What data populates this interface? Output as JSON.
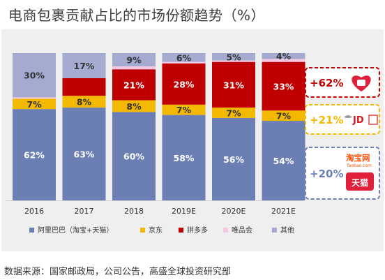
{
  "title": "电商包裹贡献占比的市场份额趋势（%）",
  "source": "数据来源：国家邮政局，公司公告，高盛全球投资研究部",
  "chart_data": {
    "type": "bar",
    "stacked": true,
    "categories": [
      "2016",
      "2017",
      "2018",
      "2019E",
      "2020E",
      "2021E"
    ],
    "ylim": [
      0,
      100
    ],
    "grid": false,
    "legend_position": "bottom",
    "series": [
      {
        "name": "阿里巴巴（淘宝+天猫）",
        "color": "#6b7fb5",
        "values": [
          62,
          63,
          60,
          58,
          56,
          54
        ]
      },
      {
        "name": "京东",
        "color": "#f3b800",
        "values": [
          7,
          8,
          8,
          7,
          7,
          7
        ]
      },
      {
        "name": "拼多多",
        "color": "#c00000",
        "values": [
          0,
          12,
          21,
          28,
          31,
          33
        ]
      },
      {
        "name": "唯品会",
        "color": "#f5c9e4",
        "values": [
          1,
          0,
          2,
          1,
          1,
          2
        ]
      },
      {
        "name": "其他",
        "color": "#a4aad0",
        "values": [
          30,
          17,
          9,
          6,
          5,
          4
        ]
      }
    ],
    "data_labels": [
      [
        "62%",
        "63%",
        "60%",
        "58%",
        "56%",
        "54%"
      ],
      [
        "7%",
        "8%",
        "8%",
        "7%",
        "7%",
        "7%"
      ],
      [
        "",
        "",
        "21%",
        "28%",
        "31%",
        "33%"
      ],
      [
        "",
        "",
        "",
        "",
        "",
        ""
      ],
      [
        "30%",
        "17%",
        "9%",
        "6%",
        "5%",
        "4%"
      ]
    ],
    "annotations": [
      {
        "label": "+62%",
        "series": "拼多多",
        "color": "#c00000"
      },
      {
        "label": "+21%",
        "series": "京东",
        "color": "#f3b800",
        "logo_text": "JD"
      },
      {
        "label": "+20%",
        "series": "阿里巴巴（淘宝+天猫）",
        "color": "#6b7fb5",
        "logo_text": "淘宝网",
        "logo_text_2": "天猫",
        "logo_text_3": "Taobao.com"
      }
    ]
  }
}
